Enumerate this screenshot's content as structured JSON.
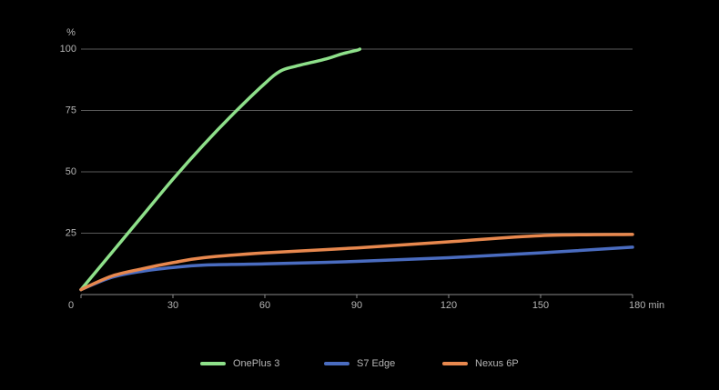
{
  "chart_data": {
    "type": "line",
    "y_label": "%",
    "xlim": [
      0,
      180
    ],
    "xticks": [
      0,
      30,
      60,
      90,
      120,
      150,
      {
        "value": 180,
        "label": "180 min"
      }
    ],
    "ylim": [
      0,
      100
    ],
    "yticks": [
      25,
      50,
      75,
      100
    ],
    "grid": true,
    "legend": "bottom",
    "series": [
      {
        "name": "OnePlus 3",
        "color": "#8ee08a",
        "x": [
          0,
          10,
          20,
          30,
          40,
          50,
          60,
          65,
          70,
          80,
          85,
          90,
          91
        ],
        "values": [
          2,
          17,
          32,
          47,
          61,
          74,
          86,
          91,
          93,
          96,
          98,
          99.5,
          100
        ]
      },
      {
        "name": "S7 Edge",
        "color": "#4a6cc0",
        "x": [
          0,
          10,
          20,
          30,
          40,
          60,
          90,
          120,
          150,
          180
        ],
        "values": [
          2,
          7,
          9.5,
          11,
          12,
          12.5,
          13.5,
          15,
          17,
          19.3
        ]
      },
      {
        "name": "Nexus 6P",
        "color": "#e8884e",
        "x": [
          0,
          10,
          20,
          30,
          40,
          60,
          90,
          120,
          150,
          180
        ],
        "values": [
          2,
          7.5,
          10.5,
          13,
          15,
          17,
          19,
          21.5,
          24,
          24.5
        ]
      }
    ]
  }
}
